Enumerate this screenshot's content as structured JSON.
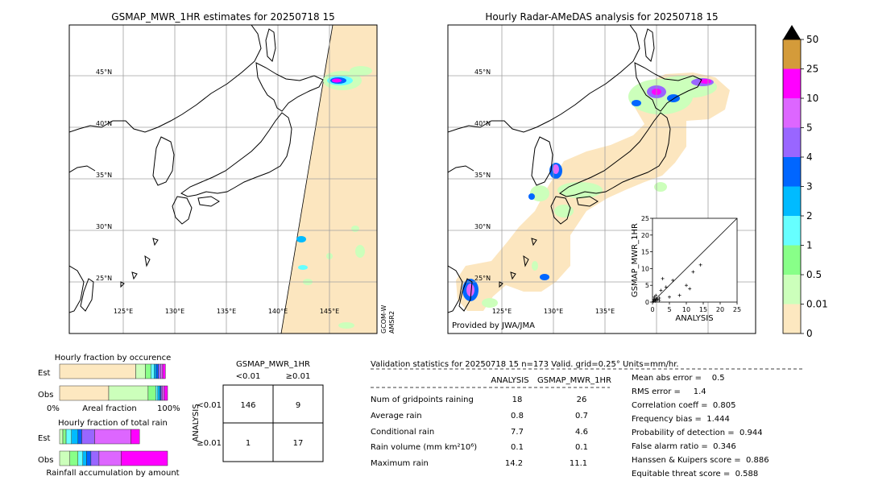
{
  "colors": {
    "land": "#ffffff",
    "coverage": "#fce6bf",
    "coast": "#000000",
    "grid": "#a0a0a0"
  },
  "colorbar": {
    "ticks": [
      "50",
      "25",
      "10",
      "5",
      "4",
      "3",
      "2",
      "1",
      "0.5",
      "0.01",
      "0"
    ],
    "colors": [
      "#d49b3a",
      "#ff00ff",
      "#dd66ff",
      "#9966ff",
      "#0066ff",
      "#00bbff",
      "#66ffff",
      "#88ff88",
      "#ccffbb",
      "#fde8c0"
    ],
    "over_color": "#000000"
  },
  "left_map": {
    "title": "GSMAP_MWR_1HR estimates for 20250718 15",
    "lat_labels": [
      "45°N",
      "40°N",
      "35°N",
      "30°N",
      "25°N"
    ],
    "lon_labels": [
      "125°E",
      "130°E",
      "135°E",
      "140°E",
      "145°E"
    ],
    "sensor_label": [
      "GCOM-W",
      "AMSR2"
    ]
  },
  "right_map": {
    "title": "Hourly Radar-AMeDAS analysis for 20250718 15",
    "lat_labels": [
      "45°N",
      "40°N",
      "35°N",
      "30°N",
      "25°N"
    ],
    "lon_labels": [
      "125°E",
      "130°E",
      "135°E"
    ],
    "credit": "Provided by JWA/JMA"
  },
  "chart_data": [
    {
      "type": "scatter",
      "xlabel": "ANALYSIS",
      "ylabel": "GSMAP_MWR_1HR",
      "xlim": [
        0,
        25
      ],
      "ylim": [
        0,
        25
      ],
      "xticks": [
        "0",
        "5",
        "10",
        "15",
        "20",
        "25"
      ],
      "yticks": [
        "0",
        "5",
        "10",
        "15",
        "20",
        "25"
      ],
      "points": [
        [
          0.3,
          0.2
        ],
        [
          0.5,
          0.6
        ],
        [
          0.8,
          0.3
        ],
        [
          1.0,
          1.0
        ],
        [
          1.2,
          0.5
        ],
        [
          1.5,
          0.8
        ],
        [
          2.0,
          1.2
        ],
        [
          0.4,
          0.9
        ],
        [
          2.5,
          3.5
        ],
        [
          3.0,
          7.0
        ],
        [
          4.0,
          4.5
        ],
        [
          5.0,
          1.5
        ],
        [
          6.0,
          6.5
        ],
        [
          8.0,
          2.0
        ],
        [
          10.0,
          5.0
        ],
        [
          11.0,
          4.0
        ],
        [
          12.0,
          9.0
        ],
        [
          14.2,
          11.1
        ],
        [
          1.0,
          2.0
        ],
        [
          2.0,
          0.5
        ],
        [
          0.6,
          1.5
        ]
      ]
    },
    {
      "type": "bar",
      "title": "Hourly fraction by occurence",
      "categories": [
        "Est",
        "Obs"
      ],
      "xlabel": "Areal fraction",
      "xtick_left": "0%",
      "xtick_right": "100%",
      "series": [
        {
          "color": "#fde8c0",
          "values": [
            0.705,
            0.455
          ]
        },
        {
          "color": "#ccffbb",
          "values": [
            0.09,
            0.365
          ]
        },
        {
          "color": "#88ff88",
          "values": [
            0.05,
            0.07
          ]
        },
        {
          "color": "#66ffff",
          "values": [
            0.03,
            0.02
          ]
        },
        {
          "color": "#00bbff",
          "values": [
            0.02,
            0.02
          ]
        },
        {
          "color": "#0066ff",
          "values": [
            0.02,
            0.01
          ]
        },
        {
          "color": "#9966ff",
          "values": [
            0.02,
            0.01
          ]
        },
        {
          "color": "#dd66ff",
          "values": [
            0.02,
            0.02
          ]
        },
        {
          "color": "#ff00ff",
          "values": [
            0.025,
            0.03
          ]
        }
      ]
    },
    {
      "type": "bar",
      "title": "Hourly fraction of total rain",
      "categories": [
        "Est",
        "Obs"
      ],
      "xlabel": "Rainfall accumulation by amount",
      "series": [
        {
          "color": "#ccffbb",
          "values": [
            0.03,
            0.095
          ]
        },
        {
          "color": "#88ff88",
          "values": [
            0.03,
            0.075
          ]
        },
        {
          "color": "#66ffff",
          "values": [
            0.05,
            0.045
          ]
        },
        {
          "color": "#00bbff",
          "values": [
            0.06,
            0.035
          ]
        },
        {
          "color": "#0066ff",
          "values": [
            0.035,
            0.04
          ]
        },
        {
          "color": "#9966ff",
          "values": [
            0.12,
            0.075
          ]
        },
        {
          "color": "#dd66ff",
          "values": [
            0.335,
            0.205
          ]
        },
        {
          "color": "#ff00ff",
          "values": [
            0.08,
            0.43
          ]
        }
      ]
    },
    {
      "type": "table",
      "title": "GSMAP_MWR_1HR",
      "col_labels": [
        "<0.01",
        "≥0.01"
      ],
      "row_axis": "ANALYSIS",
      "row_labels": [
        "<0.01",
        "≥0.01"
      ],
      "cells": [
        [
          "146",
          "9"
        ],
        [
          "1",
          "17"
        ]
      ]
    }
  ],
  "stats": {
    "header": "Validation statistics for 20250718 15  n=173 Valid. grid=0.25° Units=mm/hr.",
    "col1": "ANALYSIS",
    "col2": "GSMAP_MWR_1HR",
    "rows": [
      {
        "label": "Num of gridpoints raining",
        "a": "18",
        "b": "26"
      },
      {
        "label": "Average rain",
        "a": "0.8",
        "b": "0.7"
      },
      {
        "label": "Conditional rain",
        "a": "7.7",
        "b": "4.6"
      },
      {
        "label": "Rain volume (mm km²10⁶)",
        "a": "0.1",
        "b": "0.1"
      },
      {
        "label": "Maximum rain",
        "a": "14.2",
        "b": "11.1"
      }
    ],
    "scores": [
      "Mean abs error =    0.5",
      "RMS error =     1.4",
      "Correlation coeff =  0.805",
      "Frequency bias =  1.444",
      "Probability of detection =  0.944",
      "False alarm ratio =  0.346",
      "Hanssen & Kuipers score =  0.886",
      "Equitable threat score =  0.588"
    ]
  }
}
